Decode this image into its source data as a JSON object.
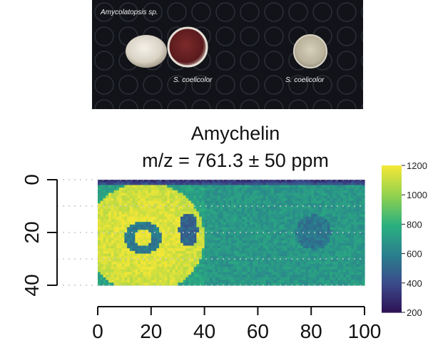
{
  "photo": {
    "labels": [
      "Amycolatopsis sp.",
      "S. coelicolor",
      "S. coelicolor"
    ]
  },
  "title": {
    "line1": "Amychelin",
    "line2": "m/z = 761.3 ± 50 ppm"
  },
  "heatmap": {
    "x_ticks": [
      "0",
      "20",
      "40",
      "60",
      "80",
      "100"
    ],
    "y_ticks": [
      "0",
      "20",
      "40"
    ],
    "xlim": [
      0,
      100
    ],
    "ylim": [
      0,
      40
    ],
    "colorbar": {
      "ticks": [
        "1200",
        "1000",
        "800",
        "600",
        "400",
        "200"
      ],
      "range": [
        200,
        1200
      ],
      "colors": [
        "#2d0f52",
        "#3b4a8a",
        "#2a7f8e",
        "#2bb07f",
        "#8fd14f",
        "#f2e637"
      ]
    }
  }
}
